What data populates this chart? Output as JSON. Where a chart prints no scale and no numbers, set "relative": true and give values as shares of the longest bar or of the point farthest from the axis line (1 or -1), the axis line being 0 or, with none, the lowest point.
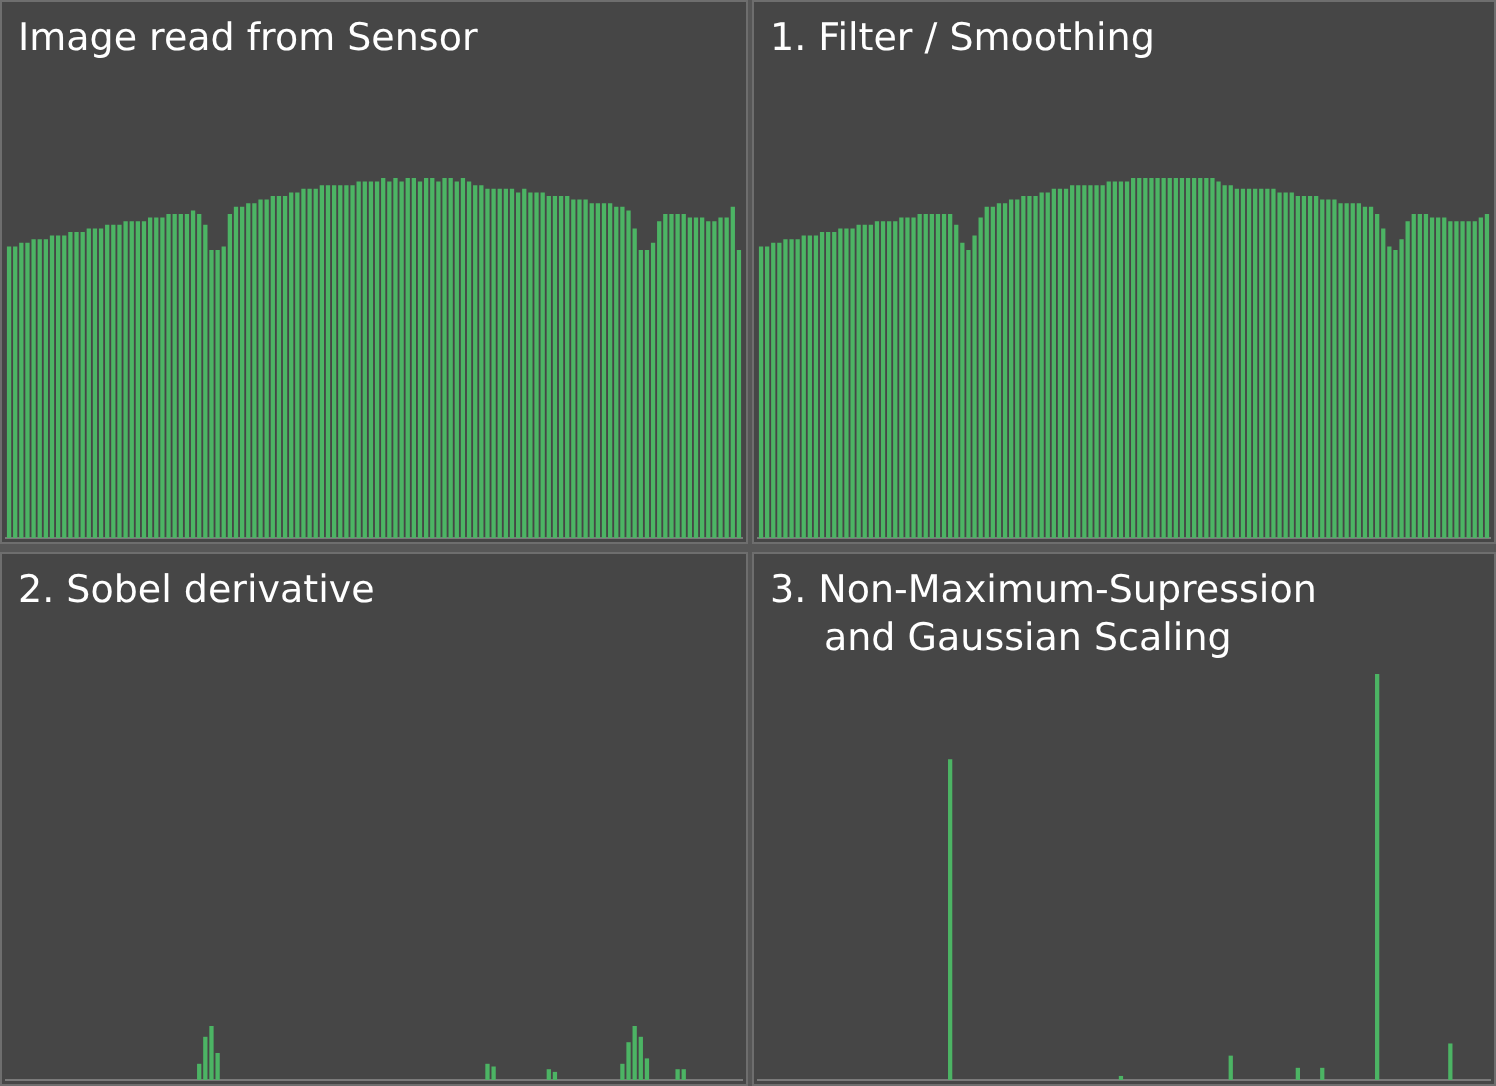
{
  "chart_data": [
    {
      "type": "bar",
      "title": "Image read from Sensor",
      "relative": true,
      "color": "#4cb464",
      "categories": [
        null,
        null,
        null,
        null,
        null,
        null,
        null,
        null,
        null,
        null,
        null,
        null,
        null,
        null,
        null,
        null,
        null,
        null,
        null,
        null,
        null,
        null,
        null,
        null,
        null,
        null,
        null,
        null,
        null,
        null,
        null,
        null,
        null,
        null,
        null,
        null,
        null,
        null,
        null,
        null,
        null,
        null,
        null,
        null,
        null,
        null,
        null,
        null,
        null,
        null,
        null,
        null,
        null,
        null,
        null,
        null,
        null,
        null,
        null,
        null,
        null,
        null,
        null,
        null,
        null,
        null,
        null,
        null,
        null,
        null,
        null,
        null,
        null,
        null,
        null,
        null,
        null,
        null,
        null,
        null,
        null,
        null,
        null,
        null,
        null,
        null,
        null,
        null,
        null,
        null,
        null,
        null,
        null,
        null,
        null,
        null,
        null,
        null,
        null,
        null,
        null,
        null,
        null,
        null,
        null,
        null,
        null,
        null,
        null,
        null,
        null,
        null,
        null,
        null,
        null,
        null,
        null,
        null,
        null,
        null
      ],
      "values": [
        0.81,
        0.81,
        0.82,
        0.82,
        0.83,
        0.83,
        0.83,
        0.84,
        0.84,
        0.84,
        0.85,
        0.85,
        0.85,
        0.86,
        0.86,
        0.86,
        0.87,
        0.87,
        0.87,
        0.88,
        0.88,
        0.88,
        0.88,
        0.89,
        0.89,
        0.89,
        0.9,
        0.9,
        0.9,
        0.9,
        0.91,
        0.9,
        0.87,
        0.8,
        0.8,
        0.81,
        0.9,
        0.92,
        0.92,
        0.93,
        0.93,
        0.94,
        0.94,
        0.95,
        0.95,
        0.95,
        0.96,
        0.96,
        0.97,
        0.97,
        0.97,
        0.98,
        0.98,
        0.98,
        0.98,
        0.98,
        0.98,
        0.99,
        0.99,
        0.99,
        0.99,
        1,
        0.99,
        1,
        0.99,
        1,
        1,
        0.99,
        1,
        1,
        0.99,
        1,
        1,
        0.99,
        1,
        0.99,
        0.98,
        0.98,
        0.97,
        0.97,
        0.97,
        0.97,
        0.97,
        0.96,
        0.97,
        0.96,
        0.96,
        0.96,
        0.95,
        0.95,
        0.95,
        0.95,
        0.94,
        0.94,
        0.94,
        0.93,
        0.93,
        0.93,
        0.93,
        0.92,
        0.92,
        0.91,
        0.86,
        0.8,
        0.8,
        0.82,
        0.88,
        0.9,
        0.9,
        0.9,
        0.9,
        0.89,
        0.89,
        0.89,
        0.88,
        0.88,
        0.89,
        0.89,
        0.92,
        0.8
      ]
    },
    {
      "type": "bar",
      "title": "1. Filter / Smoothing",
      "relative": true,
      "color": "#4cb464",
      "categories": [
        null,
        null,
        null,
        null,
        null,
        null,
        null,
        null,
        null,
        null,
        null,
        null,
        null,
        null,
        null,
        null,
        null,
        null,
        null,
        null,
        null,
        null,
        null,
        null,
        null,
        null,
        null,
        null,
        null,
        null,
        null,
        null,
        null,
        null,
        null,
        null,
        null,
        null,
        null,
        null,
        null,
        null,
        null,
        null,
        null,
        null,
        null,
        null,
        null,
        null,
        null,
        null,
        null,
        null,
        null,
        null,
        null,
        null,
        null,
        null,
        null,
        null,
        null,
        null,
        null,
        null,
        null,
        null,
        null,
        null,
        null,
        null,
        null,
        null,
        null,
        null,
        null,
        null,
        null,
        null,
        null,
        null,
        null,
        null,
        null,
        null,
        null,
        null,
        null,
        null,
        null,
        null,
        null,
        null,
        null,
        null,
        null,
        null,
        null,
        null,
        null,
        null,
        null,
        null,
        null,
        null,
        null,
        null,
        null,
        null,
        null,
        null,
        null,
        null,
        null,
        null,
        null,
        null,
        null,
        null
      ],
      "values": [
        0.81,
        0.81,
        0.82,
        0.82,
        0.83,
        0.83,
        0.83,
        0.84,
        0.84,
        0.84,
        0.85,
        0.85,
        0.85,
        0.86,
        0.86,
        0.86,
        0.87,
        0.87,
        0.87,
        0.88,
        0.88,
        0.88,
        0.88,
        0.89,
        0.89,
        0.89,
        0.9,
        0.9,
        0.9,
        0.9,
        0.9,
        0.9,
        0.87,
        0.82,
        0.8,
        0.84,
        0.89,
        0.92,
        0.92,
        0.93,
        0.93,
        0.94,
        0.94,
        0.95,
        0.95,
        0.95,
        0.96,
        0.96,
        0.97,
        0.97,
        0.97,
        0.98,
        0.98,
        0.98,
        0.98,
        0.98,
        0.98,
        0.99,
        0.99,
        0.99,
        0.99,
        1,
        1,
        1,
        1,
        1,
        1,
        1,
        1,
        1,
        1,
        1,
        1,
        1,
        1,
        0.99,
        0.98,
        0.98,
        0.97,
        0.97,
        0.97,
        0.97,
        0.97,
        0.97,
        0.97,
        0.96,
        0.96,
        0.96,
        0.95,
        0.95,
        0.95,
        0.95,
        0.94,
        0.94,
        0.94,
        0.93,
        0.93,
        0.93,
        0.93,
        0.92,
        0.92,
        0.9,
        0.86,
        0.81,
        0.8,
        0.83,
        0.88,
        0.9,
        0.9,
        0.9,
        0.89,
        0.89,
        0.89,
        0.88,
        0.88,
        0.88,
        0.88,
        0.88,
        0.89,
        0.9
      ]
    },
    {
      "type": "bar",
      "title": "2. Sobel derivative",
      "relative": true,
      "color": "#4cb464",
      "categories": [
        null,
        null,
        null,
        null,
        null,
        null,
        null,
        null,
        null,
        null,
        null,
        null,
        null,
        null,
        null,
        null,
        null,
        null,
        null,
        null,
        null,
        null,
        null,
        null,
        null,
        null,
        null,
        null,
        null,
        null,
        null,
        null,
        null,
        null,
        null,
        null,
        null,
        null,
        null,
        null,
        null,
        null,
        null,
        null,
        null,
        null,
        null,
        null,
        null,
        null,
        null,
        null,
        null,
        null,
        null,
        null,
        null,
        null,
        null,
        null,
        null,
        null,
        null,
        null,
        null,
        null,
        null,
        null,
        null,
        null,
        null,
        null,
        null,
        null,
        null,
        null,
        null,
        null,
        null,
        null,
        null,
        null,
        null,
        null,
        null,
        null,
        null,
        null,
        null,
        null,
        null,
        null,
        null,
        null,
        null,
        null,
        null,
        null,
        null,
        null,
        null,
        null,
        null,
        null,
        null,
        null,
        null,
        null,
        null,
        null,
        null,
        null,
        null,
        null,
        null,
        null,
        null,
        null,
        null,
        null
      ],
      "values": [
        null,
        null,
        null,
        null,
        null,
        null,
        null,
        null,
        null,
        null,
        null,
        null,
        null,
        null,
        null,
        null,
        null,
        null,
        null,
        null,
        null,
        null,
        null,
        null,
        null,
        null,
        null,
        null,
        null,
        null,
        null,
        0.3,
        0.8,
        1,
        0.5,
        null,
        null,
        null,
        null,
        null,
        null,
        null,
        null,
        null,
        null,
        null,
        null,
        null,
        null,
        null,
        null,
        null,
        null,
        null,
        null,
        null,
        null,
        null,
        null,
        null,
        null,
        null,
        null,
        null,
        null,
        null,
        null,
        null,
        null,
        null,
        null,
        null,
        null,
        null,
        null,
        null,
        null,
        null,
        0.3,
        0.25,
        null,
        null,
        null,
        null,
        null,
        null,
        null,
        null,
        0.2,
        0.15,
        null,
        null,
        null,
        null,
        null,
        null,
        null,
        null,
        null,
        null,
        0.3,
        0.7,
        1,
        0.8,
        0.4,
        null,
        null,
        null,
        null,
        0.2,
        0.2,
        null,
        null,
        null,
        null,
        null,
        null,
        null,
        null,
        null
      ]
    },
    {
      "type": "bar",
      "title": "3. Non-Maximum-Supression and Gaussian Scaling",
      "relative": true,
      "color": "#4cb464",
      "categories": [
        null,
        null,
        null,
        null,
        null,
        null,
        null,
        null,
        null,
        null,
        null,
        null,
        null,
        null,
        null,
        null,
        null,
        null,
        null,
        null,
        null,
        null,
        null,
        null,
        null,
        null,
        null,
        null,
        null,
        null,
        null,
        null,
        null,
        null,
        null,
        null,
        null,
        null,
        null,
        null,
        null,
        null,
        null,
        null,
        null,
        null,
        null,
        null,
        null,
        null,
        null,
        null,
        null,
        null,
        null,
        null,
        null,
        null,
        null,
        null,
        null,
        null,
        null,
        null,
        null,
        null,
        null,
        null,
        null,
        null,
        null,
        null,
        null,
        null,
        null,
        null,
        null,
        null,
        null,
        null,
        null,
        null,
        null,
        null,
        null,
        null,
        null,
        null,
        null,
        null,
        null,
        null,
        null,
        null,
        null,
        null,
        null,
        null,
        null,
        null,
        null,
        null,
        null,
        null,
        null,
        null,
        null,
        null,
        null,
        null,
        null,
        null,
        null,
        null,
        null,
        null,
        null,
        null,
        null,
        null
      ],
      "values": [
        null,
        null,
        null,
        null,
        null,
        null,
        null,
        null,
        null,
        null,
        null,
        null,
        null,
        null,
        null,
        null,
        null,
        null,
        null,
        null,
        null,
        null,
        null,
        null,
        null,
        null,
        null,
        null,
        null,
        null,
        null,
        0.79,
        null,
        null,
        null,
        null,
        null,
        null,
        null,
        null,
        null,
        null,
        null,
        null,
        null,
        null,
        null,
        null,
        null,
        null,
        null,
        null,
        null,
        null,
        null,
        null,
        null,
        null,
        null,
        0.01,
        null,
        null,
        null,
        null,
        null,
        null,
        null,
        null,
        null,
        null,
        null,
        null,
        null,
        null,
        null,
        null,
        null,
        0.06,
        null,
        null,
        null,
        null,
        null,
        null,
        null,
        null,
        null,
        null,
        0.03,
        null,
        null,
        null,
        0.03,
        null,
        null,
        null,
        null,
        null,
        null,
        null,
        null,
        1,
        null,
        null,
        null,
        null,
        null,
        null,
        null,
        null,
        null,
        null,
        null,
        0.09,
        null,
        null,
        null,
        null,
        null,
        null
      ]
    }
  ]
}
